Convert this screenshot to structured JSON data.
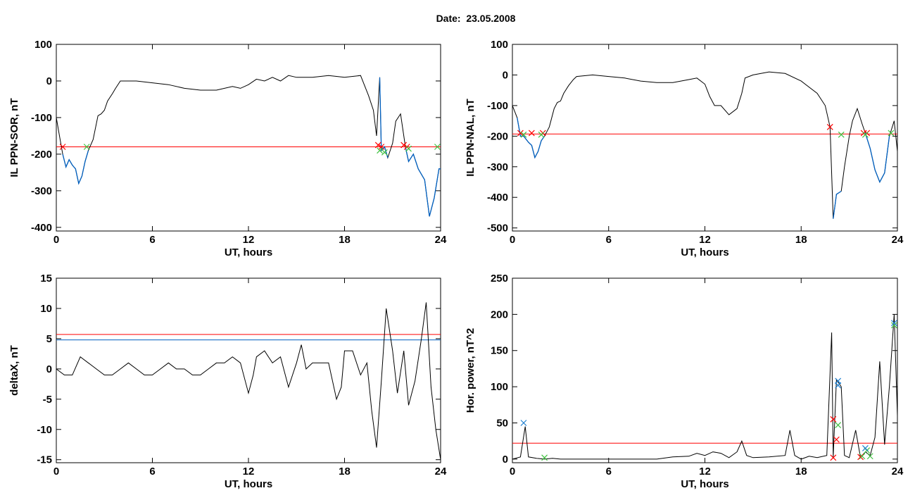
{
  "page": {
    "title": "Date:  23.05.2008"
  },
  "colors": {
    "axis": "#000000",
    "line": "#000000",
    "threshold": "#ff0000",
    "blue_line": "#0060c0",
    "green_marker": "#40c040",
    "red_marker": "#ff0000",
    "blue_marker": "#2080d0"
  },
  "chart_data": [
    {
      "type": "line",
      "xlabel": "UT, hours",
      "ylabel": "IL PPN-SOR, nT",
      "xlim": [
        0,
        24
      ],
      "ylim": [
        -410,
        100
      ],
      "x_ticks": [
        0,
        6,
        12,
        18,
        24
      ],
      "y_ticks": [
        100,
        0,
        -100,
        -200,
        -300,
        -400
      ],
      "series": [
        {
          "values": [
            [
              0,
              -100
            ],
            [
              0.2,
              -150
            ],
            [
              0.4,
              -200
            ],
            [
              0.6,
              -235
            ],
            [
              0.8,
              -215
            ],
            [
              1.0,
              -230
            ],
            [
              1.2,
              -240
            ],
            [
              1.4,
              -280
            ],
            [
              1.6,
              -260
            ],
            [
              1.8,
              -220
            ],
            [
              2.0,
              -190
            ],
            [
              2.3,
              -160
            ],
            [
              2.6,
              -95
            ],
            [
              2.8,
              -90
            ],
            [
              3.0,
              -80
            ],
            [
              3.2,
              -55
            ],
            [
              3.5,
              -35
            ],
            [
              3.7,
              -20
            ],
            [
              4.0,
              0
            ],
            [
              5,
              0
            ],
            [
              6,
              -5
            ],
            [
              7,
              -10
            ],
            [
              8,
              -20
            ],
            [
              9,
              -25
            ],
            [
              10,
              -25
            ],
            [
              11,
              -15
            ],
            [
              11.5,
              -20
            ],
            [
              12,
              -10
            ],
            [
              12.5,
              5
            ],
            [
              13,
              0
            ],
            [
              13.5,
              10
            ],
            [
              14,
              0
            ],
            [
              14.5,
              15
            ],
            [
              15,
              10
            ],
            [
              16,
              10
            ],
            [
              17,
              15
            ],
            [
              18,
              10
            ],
            [
              19,
              15
            ],
            [
              19.5,
              -40
            ],
            [
              19.8,
              -80
            ],
            [
              20.0,
              -150
            ],
            [
              20.2,
              10
            ],
            [
              20.3,
              -190
            ],
            [
              20.5,
              -180
            ],
            [
              20.7,
              -210
            ],
            [
              21.0,
              -170
            ],
            [
              21.2,
              -110
            ],
            [
              21.5,
              -90
            ],
            [
              21.8,
              -180
            ],
            [
              22.0,
              -220
            ],
            [
              22.3,
              -200
            ],
            [
              22.6,
              -240
            ],
            [
              23.0,
              -270
            ],
            [
              23.3,
              -370
            ],
            [
              23.6,
              -320
            ],
            [
              23.9,
              -240
            ],
            [
              24,
              -240
            ]
          ]
        }
      ],
      "threshold_lines": [
        {
          "value": -180,
          "color": "#ff0000"
        }
      ],
      "blue_segments": [
        [
          0.3,
          2.0
        ],
        [
          20.1,
          20.8
        ],
        [
          21.8,
          24.0
        ]
      ],
      "markers": {
        "red": [
          [
            0.4,
            -180
          ],
          [
            20.1,
            -175
          ],
          [
            20.3,
            -180
          ],
          [
            21.7,
            -175
          ],
          [
            21.9,
            -180
          ]
        ],
        "green": [
          [
            1.9,
            -180
          ],
          [
            20.2,
            -190
          ],
          [
            20.5,
            -195
          ],
          [
            22.0,
            -185
          ],
          [
            23.8,
            -180
          ]
        ]
      }
    },
    {
      "type": "line",
      "xlabel": "UT, hours",
      "ylabel": "IL PPN-NAL, nT",
      "xlim": [
        0,
        24
      ],
      "ylim": [
        -510,
        100
      ],
      "x_ticks": [
        0,
        6,
        12,
        18,
        24
      ],
      "y_ticks": [
        100,
        0,
        -100,
        -200,
        -300,
        -400,
        -500
      ],
      "series": [
        {
          "values": [
            [
              0,
              -100
            ],
            [
              0.3,
              -140
            ],
            [
              0.5,
              -200
            ],
            [
              0.7,
              -200
            ],
            [
              1.0,
              -220
            ],
            [
              1.2,
              -230
            ],
            [
              1.4,
              -270
            ],
            [
              1.6,
              -250
            ],
            [
              1.8,
              -215
            ],
            [
              2.0,
              -200
            ],
            [
              2.3,
              -170
            ],
            [
              2.6,
              -110
            ],
            [
              2.8,
              -90
            ],
            [
              3.0,
              -85
            ],
            [
              3.2,
              -60
            ],
            [
              3.5,
              -35
            ],
            [
              3.8,
              -15
            ],
            [
              4.0,
              -5
            ],
            [
              5,
              0
            ],
            [
              6,
              -5
            ],
            [
              7,
              -10
            ],
            [
              8,
              -20
            ],
            [
              9,
              -25
            ],
            [
              10,
              -25
            ],
            [
              11,
              -15
            ],
            [
              11.5,
              -10
            ],
            [
              12,
              -30
            ],
            [
              12.3,
              -70
            ],
            [
              12.6,
              -100
            ],
            [
              13,
              -100
            ],
            [
              13.5,
              -130
            ],
            [
              14,
              -110
            ],
            [
              14.3,
              -60
            ],
            [
              14.5,
              -10
            ],
            [
              15,
              0
            ],
            [
              16,
              10
            ],
            [
              17,
              5
            ],
            [
              18,
              -20
            ],
            [
              19,
              -60
            ],
            [
              19.5,
              -100
            ],
            [
              19.8,
              -170
            ],
            [
              20.0,
              -470
            ],
            [
              20.2,
              -390
            ],
            [
              20.5,
              -380
            ],
            [
              20.7,
              -300
            ],
            [
              21.0,
              -200
            ],
            [
              21.2,
              -150
            ],
            [
              21.5,
              -110
            ],
            [
              21.8,
              -160
            ],
            [
              22.0,
              -190
            ],
            [
              22.3,
              -240
            ],
            [
              22.6,
              -310
            ],
            [
              22.9,
              -350
            ],
            [
              23.2,
              -320
            ],
            [
              23.5,
              -200
            ],
            [
              23.8,
              -150
            ],
            [
              24,
              -250
            ]
          ]
        }
      ],
      "threshold_lines": [
        {
          "value": -193,
          "color": "#ff0000"
        }
      ],
      "blue_segments": [
        [
          0.3,
          2.1
        ],
        [
          19.9,
          20.6
        ],
        [
          21.9,
          23.6
        ]
      ],
      "markers": {
        "red": [
          [
            0.5,
            -190
          ],
          [
            1.2,
            -190
          ],
          [
            1.9,
            -190
          ],
          [
            19.8,
            -170
          ],
          [
            21.9,
            -190
          ],
          [
            22.1,
            -190
          ]
        ],
        "green": [
          [
            0.7,
            -195
          ],
          [
            1.8,
            -195
          ],
          [
            20.5,
            -195
          ],
          [
            22.0,
            -195
          ],
          [
            23.6,
            -190
          ]
        ]
      }
    },
    {
      "type": "line",
      "xlabel": "UT, hours",
      "ylabel": "deltaX, nT",
      "xlim": [
        0,
        24
      ],
      "ylim": [
        -15.5,
        15
      ],
      "x_ticks": [
        0,
        6,
        12,
        18,
        24
      ],
      "y_ticks": [
        15,
        10,
        5,
        0,
        -5,
        -10,
        -15
      ],
      "series": [
        {
          "values": [
            [
              0,
              0
            ],
            [
              0.5,
              -1
            ],
            [
              1,
              -1
            ],
            [
              1.5,
              2
            ],
            [
              2,
              1
            ],
            [
              2.5,
              0
            ],
            [
              3,
              -1
            ],
            [
              3.5,
              -1
            ],
            [
              4,
              0
            ],
            [
              4.5,
              1
            ],
            [
              5,
              0
            ],
            [
              5.5,
              -1
            ],
            [
              6,
              -1
            ],
            [
              6.5,
              0
            ],
            [
              7,
              1
            ],
            [
              7.5,
              0
            ],
            [
              8,
              0
            ],
            [
              8.5,
              -1
            ],
            [
              9,
              -1
            ],
            [
              9.5,
              0
            ],
            [
              10,
              1
            ],
            [
              10.5,
              1
            ],
            [
              11,
              2
            ],
            [
              11.5,
              1
            ],
            [
              12,
              -4
            ],
            [
              12.3,
              -1
            ],
            [
              12.5,
              2
            ],
            [
              13,
              3
            ],
            [
              13.5,
              1
            ],
            [
              14,
              2
            ],
            [
              14.5,
              -3
            ],
            [
              15,
              1
            ],
            [
              15.3,
              4
            ],
            [
              15.6,
              0
            ],
            [
              16,
              1
            ],
            [
              16.5,
              1
            ],
            [
              17,
              1
            ],
            [
              17.5,
              -5
            ],
            [
              17.8,
              -3
            ],
            [
              18,
              3
            ],
            [
              18.5,
              3
            ],
            [
              19,
              -1
            ],
            [
              19.4,
              1
            ],
            [
              19.7,
              -7
            ],
            [
              20.0,
              -13
            ],
            [
              20.3,
              -2
            ],
            [
              20.6,
              10
            ],
            [
              21.0,
              3
            ],
            [
              21.3,
              -4
            ],
            [
              21.7,
              3
            ],
            [
              22.0,
              -6
            ],
            [
              22.4,
              -2
            ],
            [
              22.8,
              5
            ],
            [
              23.1,
              11
            ],
            [
              23.4,
              -3
            ],
            [
              23.7,
              -10
            ],
            [
              24,
              -15
            ]
          ]
        }
      ],
      "threshold_lines": [
        {
          "value": 5.7,
          "color": "#ff0000"
        },
        {
          "value": 4.8,
          "color": "#0060c0"
        }
      ],
      "blue_segments": [],
      "markers": {
        "red": [],
        "green": []
      }
    },
    {
      "type": "line",
      "xlabel": "UT, hours",
      "ylabel": "Hor. power, nT^2",
      "xlim": [
        0,
        24
      ],
      "ylim": [
        -5,
        250
      ],
      "x_ticks": [
        0,
        6,
        12,
        18,
        24
      ],
      "y_ticks": [
        250,
        200,
        150,
        100,
        50,
        0
      ],
      "series": [
        {
          "values": [
            [
              0,
              0
            ],
            [
              0.5,
              3
            ],
            [
              0.8,
              45
            ],
            [
              1.0,
              3
            ],
            [
              1.5,
              1
            ],
            [
              2,
              0
            ],
            [
              2.5,
              1
            ],
            [
              3,
              0
            ],
            [
              4,
              0
            ],
            [
              5,
              0
            ],
            [
              6,
              0
            ],
            [
              7,
              0
            ],
            [
              8,
              0
            ],
            [
              9,
              0
            ],
            [
              10,
              3
            ],
            [
              11,
              4
            ],
            [
              11.5,
              8
            ],
            [
              12,
              5
            ],
            [
              12.5,
              10
            ],
            [
              13,
              8
            ],
            [
              13.5,
              2
            ],
            [
              14,
              10
            ],
            [
              14.3,
              25
            ],
            [
              14.6,
              5
            ],
            [
              15,
              2
            ],
            [
              16,
              3
            ],
            [
              17,
              5
            ],
            [
              17.3,
              40
            ],
            [
              17.6,
              5
            ],
            [
              18,
              0
            ],
            [
              18.5,
              4
            ],
            [
              19,
              2
            ],
            [
              19.6,
              5
            ],
            [
              19.9,
              175
            ],
            [
              20.0,
              3
            ],
            [
              20.2,
              110
            ],
            [
              20.5,
              100
            ],
            [
              20.7,
              5
            ],
            [
              21.0,
              2
            ],
            [
              21.4,
              40
            ],
            [
              21.7,
              2
            ],
            [
              22.0,
              10
            ],
            [
              22.3,
              5
            ],
            [
              22.6,
              30
            ],
            [
              22.9,
              135
            ],
            [
              23.2,
              20
            ],
            [
              23.5,
              100
            ],
            [
              23.8,
              200
            ],
            [
              24,
              60
            ]
          ]
        }
      ],
      "threshold_lines": [
        {
          "value": 22,
          "color": "#ff0000"
        }
      ],
      "blue_segments": [],
      "markers": {
        "red": [
          [
            20.0,
            55
          ],
          [
            20.2,
            27
          ],
          [
            20.0,
            2
          ],
          [
            21.7,
            3
          ]
        ],
        "green": [
          [
            2.0,
            2
          ],
          [
            20.3,
            47
          ],
          [
            21.8,
            4
          ],
          [
            22.1,
            12
          ],
          [
            22.3,
            4
          ],
          [
            23.8,
            185
          ]
        ],
        "blue": [
          [
            0.7,
            50
          ],
          [
            20.3,
            108
          ],
          [
            20.3,
            102
          ],
          [
            22.0,
            15
          ],
          [
            23.8,
            188
          ]
        ]
      }
    }
  ]
}
